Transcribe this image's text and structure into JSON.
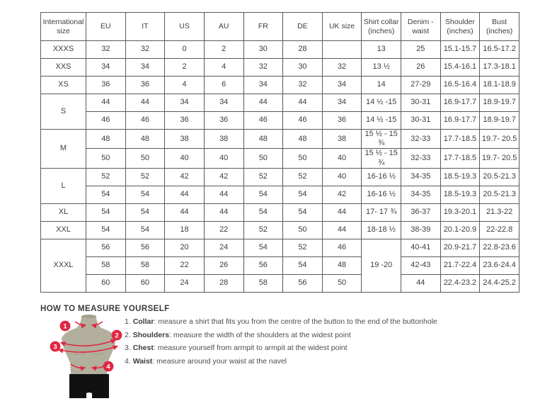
{
  "size_chart": {
    "headers": [
      "International size",
      "EU",
      "IT",
      "US",
      "AU",
      "FR",
      "DE",
      "UK size",
      "Shirt collar (inches)",
      "Denim - waist",
      "Shoulder (inches)",
      "Bust (inches)"
    ],
    "groups": [
      {
        "size": "XXXS",
        "rows": [
          [
            "32",
            "32",
            "0",
            "2",
            "30",
            "28",
            "",
            "13",
            "25",
            "15.1-15.7",
            "16.5-17.2"
          ]
        ]
      },
      {
        "size": "XXS",
        "rows": [
          [
            "34",
            "34",
            "2",
            "4",
            "32",
            "30",
            "32",
            "13 ½",
            "26",
            "15.4-16.1",
            "17.3-18.1"
          ]
        ]
      },
      {
        "size": "XS",
        "rows": [
          [
            "36",
            "36",
            "4",
            "6",
            "34",
            "32",
            "34",
            "14",
            "27-29",
            "16.5-16.4",
            "18.1-18.9"
          ]
        ]
      },
      {
        "size": "S",
        "rows": [
          [
            "44",
            "44",
            "34",
            "34",
            "44",
            "44",
            "34",
            "14 ½ -15",
            "30-31",
            "16.9-17.7",
            "18.9-19.7"
          ],
          [
            "46",
            "46",
            "36",
            "36",
            "46",
            "46",
            "36",
            "14 ½ -15",
            "30-31",
            "16.9-17.7",
            "18.9-19.7"
          ]
        ]
      },
      {
        "size": "M",
        "rows": [
          [
            "48",
            "48",
            "38",
            "38",
            "48",
            "48",
            "38",
            "15 ½ - 15 ¾",
            "32-33",
            "17.7-18.5",
            "19.7- 20.5"
          ],
          [
            "50",
            "50",
            "40",
            "40",
            "50",
            "50",
            "40",
            "15 ½ - 15 ¾",
            "32-33",
            "17.7-18.5",
            "19.7- 20.5"
          ]
        ]
      },
      {
        "size": "L",
        "rows": [
          [
            "52",
            "52",
            "42",
            "42",
            "52",
            "52",
            "40",
            "16-16 ½",
            "34-35",
            "18.5-19.3",
            "20.5-21.3"
          ],
          [
            "54",
            "54",
            "44",
            "44",
            "54",
            "54",
            "42",
            "16-16 ½",
            "34-35",
            "18.5-19.3",
            "20.5-21.3"
          ]
        ]
      },
      {
        "size": "XL",
        "rows": [
          [
            "54",
            "54",
            "44",
            "44",
            "54",
            "54",
            "44",
            "17- 17 ¾",
            "36-37",
            "19.3-20.1",
            "21.3-22"
          ]
        ]
      },
      {
        "size": "XXL",
        "rows": [
          [
            "54",
            "54",
            "18",
            "22",
            "52",
            "50",
            "44",
            "18-18 ½",
            "38-39",
            "20.1-20.9",
            "22-22.8"
          ]
        ]
      },
      {
        "size": "XXXL",
        "rows": [
          [
            "56",
            "56",
            "20",
            "24",
            "54",
            "52",
            "46",
            {
              "v": "19 -20",
              "rowspan": 3
            },
            "40-41",
            "20.9-21.7",
            "22.8-23.6"
          ],
          [
            "58",
            "58",
            "22",
            "26",
            "56",
            "54",
            "48",
            null,
            "42-43",
            "21.7-22.4",
            "23.6-24.4"
          ],
          [
            "60",
            "60",
            "24",
            "28",
            "58",
            "56",
            "50",
            null,
            "44",
            "22.4-23.2",
            "24.4-25.2"
          ]
        ]
      }
    ]
  },
  "instructions": {
    "title": "HOW TO MEASURE YOURSELF",
    "items": [
      {
        "num": "1.",
        "label": "Collar",
        "text": "measure a shirt that fits you from the centre of the button to the end of the buttonhole"
      },
      {
        "num": "2.",
        "label": "Shoulders",
        "text": "measure the width of the shoulders at the widest point"
      },
      {
        "num": "3.",
        "label": "Chest",
        "text": "measure yourself from armpit to armpit at the widest point"
      },
      {
        "num": "4.",
        "label": "Waist",
        "text": "measure around your waist at the navel"
      }
    ],
    "badges": [
      "1",
      "2",
      "3",
      "4"
    ]
  },
  "colors": {
    "accent_red": "#e02742",
    "mannequin_body": "#b2af9d",
    "mannequin_shorts": "#111111",
    "table_border_dark": "#5a5a5a",
    "table_border_light": "#9c9c9c",
    "text": "#3e3e3e"
  }
}
